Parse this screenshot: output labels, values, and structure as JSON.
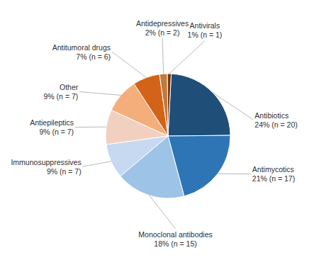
{
  "chart_data": {
    "type": "pie",
    "categories": [
      "Antibiotics\n24% (n = 20)",
      "Antimycotics\n21% (n = 17)",
      "Monoclonal antibodies\n18% (n = 15)",
      "Immunosuppressives\n9% (n = 7)",
      "Antiepileptics\n9% (n = 7)",
      "Other\n9% (n = 7)",
      "Antitumoral drugs\n7% (n = 6)",
      "Antidepressives\n2% (n = 2)",
      "Antivirals\n1% (n = 1)"
    ],
    "values": [
      24,
      21,
      18,
      9,
      9,
      9,
      7,
      2,
      1
    ],
    "colors": [
      "#1f4e79",
      "#2e75b6",
      "#9dc3e6",
      "#c6d9f0",
      "#f2d0c0",
      "#f4ae7b",
      "#d4631a",
      "#c07a3a",
      "#7b3810"
    ]
  }
}
